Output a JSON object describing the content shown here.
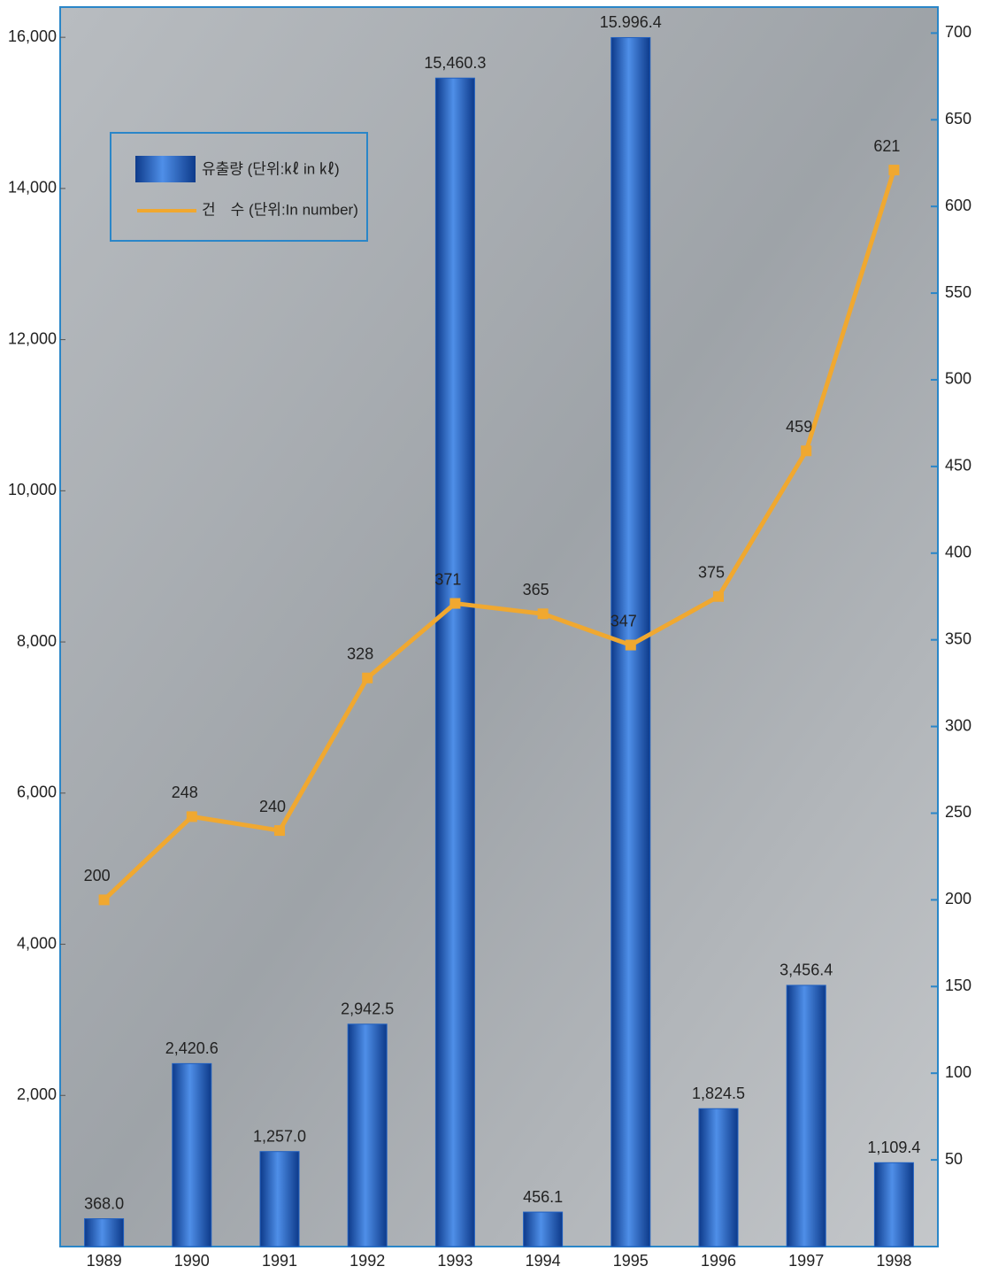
{
  "chart_data": {
    "type": "bar",
    "categories": [
      "1989",
      "1990",
      "1991",
      "1992",
      "1993",
      "1994",
      "1995",
      "1996",
      "1997",
      "1998"
    ],
    "series": [
      {
        "name": "유출량 (단위:㎘ in ㎘)",
        "type": "bar",
        "color": "#1f5fc0",
        "values": [
          368.0,
          2420.6,
          1257.0,
          2942.5,
          15460.3,
          456.1,
          15996.4,
          1824.5,
          3456.4,
          1109.4
        ],
        "value_labels": [
          "368.0",
          "2,420.6",
          "1,257.0",
          "2,942.5",
          "15,460.3",
          "456.1",
          "15.996.4",
          "1,824.5",
          "3,456.4",
          "1,109.4"
        ]
      },
      {
        "name": "건　수 (단위:In number)",
        "type": "line",
        "color": "#f0a830",
        "axis": "y2",
        "values": [
          200,
          248,
          240,
          328,
          371,
          365,
          347,
          375,
          459,
          621
        ]
      }
    ],
    "ylim": [
      0,
      16400
    ],
    "yticks": [
      {
        "value": 2000,
        "label": "2,000"
      },
      {
        "value": 4000,
        "label": "4,000"
      },
      {
        "value": 6000,
        "label": "6,000"
      },
      {
        "value": 8000,
        "label": "8,000"
      },
      {
        "value": 10000,
        "label": "10,000"
      },
      {
        "value": 12000,
        "label": "12,000"
      },
      {
        "value": 14000,
        "label": "14,000"
      },
      {
        "value": 16000,
        "label": "16,000"
      }
    ],
    "y2lim": [
      0,
      715
    ],
    "y2ticks": [
      50,
      100,
      150,
      200,
      250,
      300,
      350,
      400,
      450,
      500,
      550,
      600,
      650,
      700
    ]
  }
}
